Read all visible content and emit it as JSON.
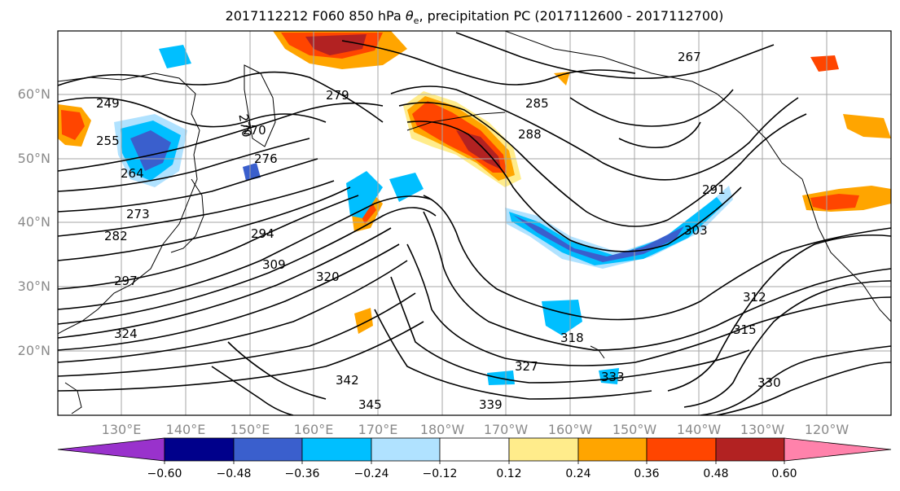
{
  "title": {
    "main": "2017112212 F060 850 hPa ",
    "theta": "θ",
    "theta_sub": "e",
    "rest": ", precipitation PC (2017112600 - 2017112700)"
  },
  "map": {
    "projection": "plate-carree",
    "lon_range": [
      120,
      250
    ],
    "lat_range": [
      10,
      70
    ],
    "grid": true,
    "lat_labels": [
      "60°N",
      "50°N",
      "40°N",
      "30°N",
      "20°N"
    ],
    "lon_labels": [
      "130°E",
      "140°E",
      "150°E",
      "160°E",
      "170°E",
      "180°W",
      "170°W",
      "160°W",
      "150°W",
      "140°W",
      "130°W",
      "120°W"
    ],
    "contour_labels": [
      "249",
      "255",
      "264",
      "270",
      "273",
      "276",
      "279",
      "282",
      "285",
      "288",
      "291",
      "294",
      "297",
      "303",
      "309",
      "312",
      "315",
      "318",
      "320",
      "324",
      "327",
      "330",
      "333",
      "339",
      "342",
      "345",
      "267",
      "270"
    ]
  },
  "colorbar": {
    "ticks": [
      "−0.60",
      "−0.48",
      "−0.36",
      "−0.24",
      "−0.12",
      "0.12",
      "0.24",
      "0.36",
      "0.48",
      "0.60"
    ],
    "colors": [
      "#9932cc",
      "#00008b",
      "#3a5fcd",
      "#00bfff",
      "#b0e2ff",
      "#ffffff",
      "#ffec8b",
      "#ffa500",
      "#ff4500",
      "#b22222",
      "#ff82ab"
    ],
    "extend": "both"
  },
  "chart_data": {
    "type": "heatmap",
    "title": "2017112212 F060 850 hPa θe, precipitation PC (2017112600 - 2017112700)",
    "variable_contours": "850 hPa θe (K)",
    "variable_shading": "precipitation PC",
    "color_levels": [
      -0.6,
      -0.48,
      -0.36,
      -0.24,
      -0.12,
      0.12,
      0.24,
      0.36,
      0.48,
      0.6
    ],
    "contour_values": [
      249,
      255,
      264,
      267,
      270,
      273,
      276,
      279,
      282,
      285,
      288,
      291,
      294,
      297,
      303,
      309,
      312,
      315,
      318,
      320,
      324,
      327,
      330,
      333,
      339,
      342,
      345
    ]
  }
}
